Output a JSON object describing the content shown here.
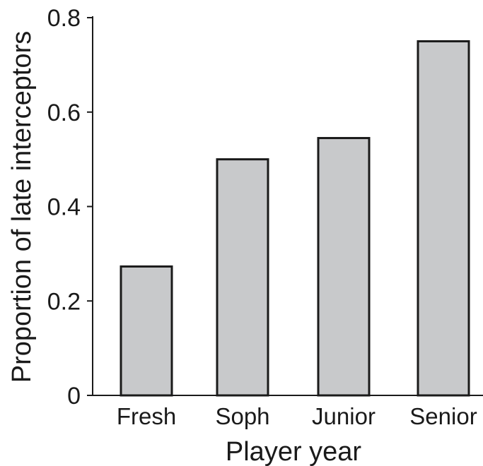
{
  "chart_data": {
    "type": "bar",
    "categories": [
      "Fresh",
      "Soph",
      "Junior",
      "Senior"
    ],
    "values": [
      0.273,
      0.5,
      0.545,
      0.75
    ],
    "xlabel": "Player year",
    "ylabel": "Proportion of late interceptors",
    "ylim": [
      0,
      0.8
    ],
    "yticks": [
      0,
      0.2,
      0.4,
      0.6,
      0.8
    ],
    "ytick_labels": [
      "0",
      "0.2",
      "0.4",
      "0.6",
      "0.8"
    ],
    "grid": false,
    "legend": "none",
    "colors": {
      "bar_fill": "#c8c9cb",
      "bar_stroke": "#1a1a1a",
      "axis": "#1a1a1a"
    }
  }
}
